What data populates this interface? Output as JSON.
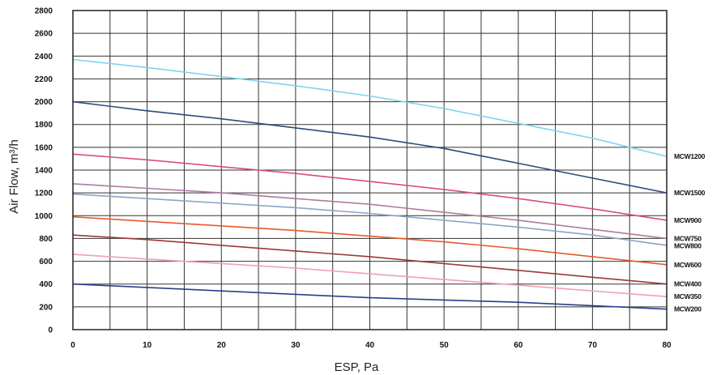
{
  "chart_data": {
    "type": "line",
    "title": "",
    "xlabel": "ESP, Pa",
    "ylabel": "Air Flow, m³/h",
    "xlim": [
      0,
      80
    ],
    "ylim": [
      0,
      2800
    ],
    "x_ticks": [
      0,
      10,
      20,
      30,
      40,
      50,
      60,
      70,
      80
    ],
    "y_ticks": [
      0,
      200,
      400,
      600,
      800,
      1000,
      1200,
      1400,
      1600,
      1800,
      2000,
      2200,
      2400,
      2600,
      2800
    ],
    "grid": true,
    "legend": "right",
    "series": [
      {
        "name": "MCW1200",
        "color": "#7fd3f0",
        "x": [
          0,
          10,
          20,
          30,
          40,
          50,
          60,
          70,
          80
        ],
        "values": [
          2370,
          2300,
          2220,
          2140,
          2050,
          1940,
          1810,
          1680,
          1520
        ]
      },
      {
        "name": "MCW1500",
        "color": "#2c4a7e",
        "x": [
          0,
          10,
          20,
          30,
          40,
          50,
          60,
          70,
          80
        ],
        "values": [
          2000,
          1920,
          1850,
          1770,
          1690,
          1590,
          1460,
          1330,
          1200
        ]
      },
      {
        "name": "MCW900",
        "color": "#d84f72",
        "x": [
          0,
          10,
          20,
          30,
          40,
          50,
          60,
          70,
          80
        ],
        "values": [
          1540,
          1490,
          1430,
          1370,
          1300,
          1230,
          1150,
          1060,
          960
        ]
      },
      {
        "name": "MCW750",
        "color": "#b07aa0",
        "x": [
          0,
          10,
          20,
          30,
          40,
          50,
          60,
          70,
          80
        ],
        "values": [
          1280,
          1240,
          1200,
          1150,
          1100,
          1030,
          960,
          880,
          800
        ]
      },
      {
        "name": "MCW800",
        "color": "#8fa3c8",
        "x": [
          0,
          10,
          20,
          30,
          40,
          50,
          60,
          70,
          80
        ],
        "values": [
          1190,
          1150,
          1110,
          1070,
          1020,
          960,
          900,
          830,
          740
        ]
      },
      {
        "name": "MCW600",
        "color": "#e65a2e",
        "x": [
          0,
          10,
          20,
          30,
          40,
          50,
          60,
          70,
          80
        ],
        "values": [
          990,
          950,
          910,
          870,
          820,
          770,
          710,
          640,
          570
        ]
      },
      {
        "name": "MCW400",
        "color": "#9a3a3a",
        "x": [
          0,
          10,
          20,
          30,
          40,
          50,
          60,
          70,
          80
        ],
        "values": [
          830,
          790,
          740,
          690,
          640,
          580,
          520,
          460,
          400
        ]
      },
      {
        "name": "MCW350",
        "color": "#f0a0b0",
        "x": [
          0,
          10,
          20,
          30,
          40,
          50,
          60,
          70,
          80
        ],
        "values": [
          660,
          620,
          580,
          540,
          490,
          440,
          390,
          340,
          290
        ]
      },
      {
        "name": "MCW200",
        "color": "#2a3f8a",
        "x": [
          0,
          10,
          20,
          30,
          40,
          50,
          60,
          70,
          80
        ],
        "values": [
          400,
          370,
          340,
          310,
          280,
          260,
          240,
          210,
          180
        ]
      }
    ]
  }
}
